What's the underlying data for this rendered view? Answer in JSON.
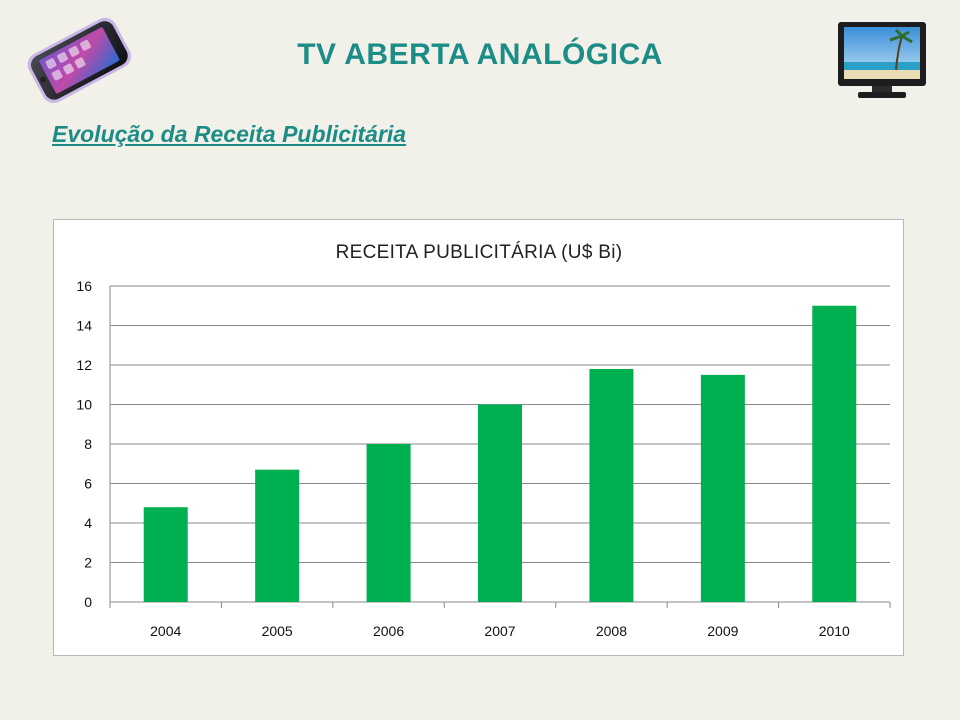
{
  "page": {
    "title": "TV ABERTA ANALÓGICA",
    "subtitle": "Evolução da Receita Publicitária"
  },
  "icons": {
    "left": "smartphone-icon",
    "right": "television-icon"
  },
  "colors": {
    "accent": "#1c8c86",
    "bar": "#00b050",
    "background": "#f1f0e9"
  },
  "chart_data": {
    "type": "bar",
    "title": "RECEITA PUBLICITÁRIA (U$ Bi)",
    "xlabel": "",
    "ylabel": "",
    "categories": [
      "2004",
      "2005",
      "2006",
      "2007",
      "2008",
      "2009",
      "2010"
    ],
    "values": [
      4.8,
      6.7,
      8.0,
      10.0,
      11.8,
      11.5,
      15.0
    ],
    "ylim": [
      0,
      16
    ],
    "yticks": [
      0,
      2,
      4,
      6,
      8,
      10,
      12,
      14,
      16
    ],
    "grid": true,
    "legend": "none"
  }
}
